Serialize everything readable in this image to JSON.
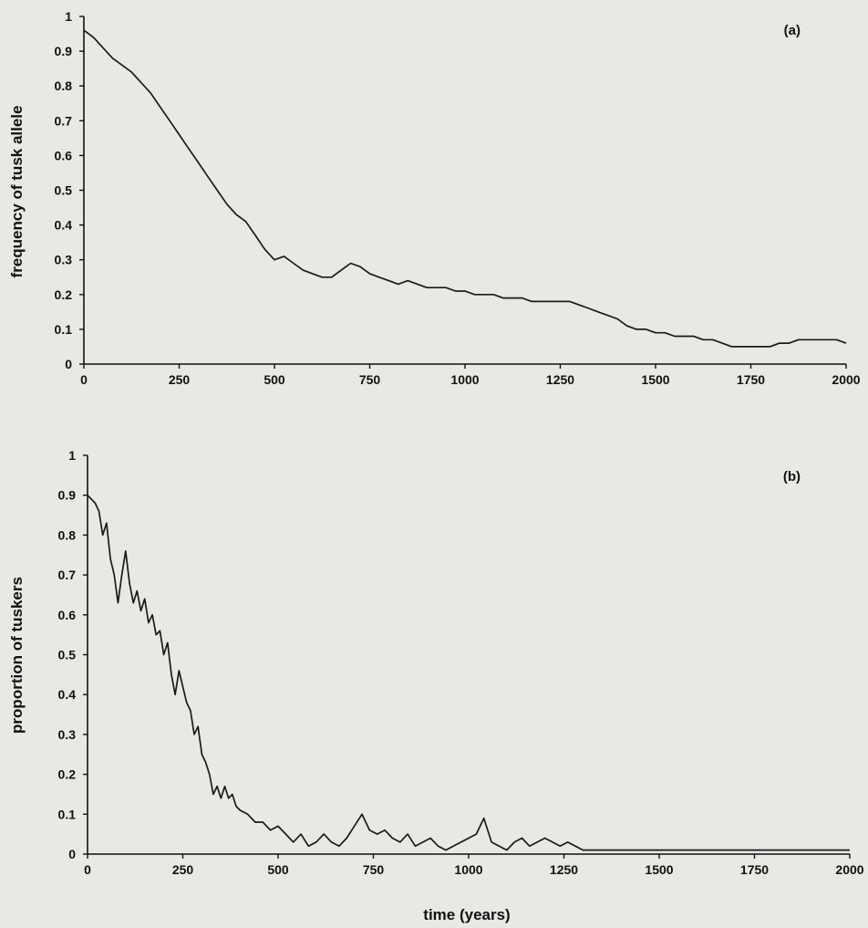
{
  "chart_data": [
    {
      "type": "line",
      "panel_label": "(a)",
      "xlabel": "",
      "ylabel": "frequency of tusk allele",
      "xlim": [
        0,
        2000
      ],
      "ylim": [
        0,
        1
      ],
      "x_ticks": [
        "0",
        "250",
        "500",
        "750",
        "1000",
        "1250",
        "1500",
        "1750",
        "2000"
      ],
      "y_ticks": [
        "0",
        "0.1",
        "0.2",
        "0.3",
        "0.4",
        "0.5",
        "0.6",
        "0.7",
        "0.8",
        "0.9",
        "1"
      ],
      "grid": false,
      "series": [
        {
          "x": [
            0,
            25,
            50,
            75,
            100,
            125,
            150,
            175,
            200,
            225,
            250,
            275,
            300,
            325,
            350,
            375,
            400,
            425,
            450,
            475,
            500,
            525,
            550,
            575,
            600,
            625,
            650,
            675,
            700,
            725,
            750,
            775,
            800,
            825,
            850,
            875,
            900,
            925,
            950,
            975,
            1000,
            1025,
            1050,
            1075,
            1100,
            1125,
            1150,
            1175,
            1200,
            1225,
            1250,
            1275,
            1300,
            1325,
            1350,
            1375,
            1400,
            1425,
            1450,
            1475,
            1500,
            1525,
            1550,
            1575,
            1600,
            1625,
            1650,
            1675,
            1700,
            1725,
            1750,
            1775,
            1800,
            1825,
            1850,
            1875,
            1900,
            1925,
            1950,
            1975,
            2000
          ],
          "y": [
            0.96,
            0.94,
            0.91,
            0.88,
            0.86,
            0.84,
            0.81,
            0.78,
            0.74,
            0.7,
            0.66,
            0.62,
            0.58,
            0.54,
            0.5,
            0.46,
            0.43,
            0.41,
            0.37,
            0.33,
            0.3,
            0.31,
            0.29,
            0.27,
            0.26,
            0.25,
            0.25,
            0.27,
            0.29,
            0.28,
            0.26,
            0.25,
            0.24,
            0.23,
            0.24,
            0.23,
            0.22,
            0.22,
            0.22,
            0.21,
            0.21,
            0.2,
            0.2,
            0.2,
            0.19,
            0.19,
            0.19,
            0.18,
            0.18,
            0.18,
            0.18,
            0.18,
            0.17,
            0.16,
            0.15,
            0.14,
            0.13,
            0.11,
            0.1,
            0.1,
            0.09,
            0.09,
            0.08,
            0.08,
            0.08,
            0.07,
            0.07,
            0.06,
            0.05,
            0.05,
            0.05,
            0.05,
            0.05,
            0.06,
            0.06,
            0.07,
            0.07,
            0.07,
            0.07,
            0.07,
            0.06
          ]
        }
      ]
    },
    {
      "type": "line",
      "panel_label": "(b)",
      "xlabel": "time (years)",
      "ylabel": "proportion of tuskers",
      "xlim": [
        0,
        2000
      ],
      "ylim": [
        0,
        1
      ],
      "x_ticks": [
        "0",
        "250",
        "500",
        "750",
        "1000",
        "1250",
        "1500",
        "1750",
        "2000"
      ],
      "y_ticks": [
        "0",
        "0.1",
        "0.2",
        "0.3",
        "0.4",
        "0.5",
        "0.6",
        "0.7",
        "0.8",
        "0.9",
        "1"
      ],
      "grid": false,
      "series": [
        {
          "x": [
            0,
            10,
            20,
            30,
            40,
            50,
            60,
            70,
            80,
            90,
            100,
            110,
            120,
            130,
            140,
            150,
            160,
            170,
            180,
            190,
            200,
            210,
            220,
            230,
            240,
            250,
            260,
            270,
            280,
            290,
            300,
            310,
            320,
            330,
            340,
            350,
            360,
            370,
            380,
            390,
            400,
            420,
            440,
            460,
            480,
            500,
            520,
            540,
            560,
            580,
            600,
            620,
            640,
            660,
            680,
            700,
            720,
            740,
            760,
            780,
            800,
            820,
            840,
            860,
            880,
            900,
            920,
            940,
            960,
            980,
            1000,
            1020,
            1040,
            1060,
            1080,
            1100,
            1120,
            1140,
            1160,
            1180,
            1200,
            1220,
            1240,
            1260,
            1280,
            1300,
            1320,
            1350,
            1400,
            1450,
            1500,
            1550,
            1600,
            1650,
            1700,
            1750,
            1800,
            1850,
            1900,
            1950,
            2000
          ],
          "y": [
            0.9,
            0.89,
            0.88,
            0.86,
            0.8,
            0.83,
            0.74,
            0.7,
            0.63,
            0.7,
            0.76,
            0.68,
            0.63,
            0.66,
            0.61,
            0.64,
            0.58,
            0.6,
            0.55,
            0.56,
            0.5,
            0.53,
            0.45,
            0.4,
            0.46,
            0.42,
            0.38,
            0.36,
            0.3,
            0.32,
            0.25,
            0.23,
            0.2,
            0.15,
            0.17,
            0.14,
            0.17,
            0.14,
            0.15,
            0.12,
            0.11,
            0.1,
            0.08,
            0.08,
            0.06,
            0.07,
            0.05,
            0.03,
            0.05,
            0.02,
            0.03,
            0.05,
            0.03,
            0.02,
            0.04,
            0.07,
            0.1,
            0.06,
            0.05,
            0.06,
            0.04,
            0.03,
            0.05,
            0.02,
            0.03,
            0.04,
            0.02,
            0.01,
            0.02,
            0.03,
            0.04,
            0.05,
            0.09,
            0.03,
            0.02,
            0.01,
            0.03,
            0.04,
            0.02,
            0.03,
            0.04,
            0.03,
            0.02,
            0.03,
            0.02,
            0.01,
            0.01,
            0.01,
            0.01,
            0.01,
            0.01,
            0.01,
            0.01,
            0.01,
            0.01,
            0.01,
            0.01,
            0.01,
            0.01,
            0.01,
            0.01
          ]
        }
      ]
    }
  ]
}
